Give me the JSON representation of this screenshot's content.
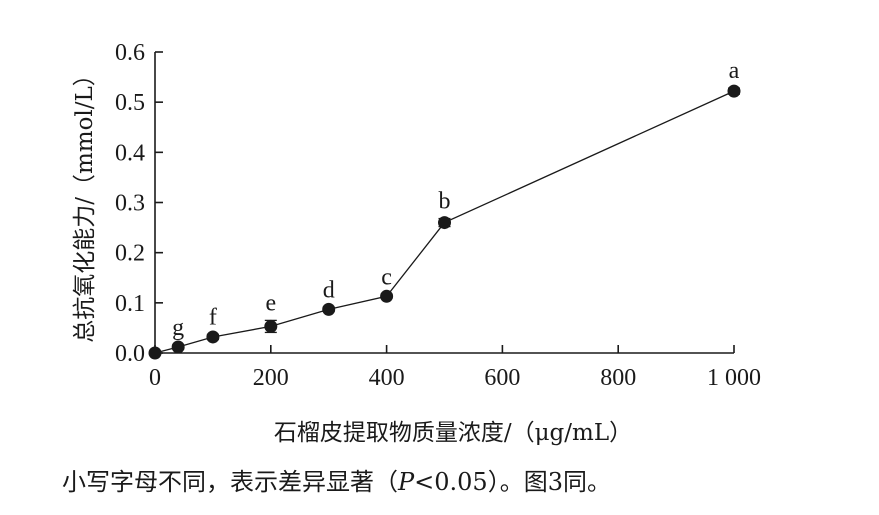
{
  "chart_data": {
    "type": "line",
    "xlabel": "石榴皮提取物质量浓度/（μg/mL）",
    "ylabel": "总抗氧化能力/（mmol/L）",
    "xlim": [
      0,
      1000
    ],
    "ylim": [
      0,
      0.6
    ],
    "x_ticks": [
      0,
      200,
      400,
      600,
      800,
      1000
    ],
    "x_tick_labels": [
      "0",
      "200",
      "400",
      "600",
      "800",
      "1 000"
    ],
    "y_ticks": [
      0,
      0.1,
      0.2,
      0.3,
      0.4,
      0.5,
      0.6
    ],
    "y_tick_labels": [
      "0.0",
      "0.1",
      "0.2",
      "0.3",
      "0.4",
      "0.5",
      "0.6"
    ],
    "grid": false,
    "series": [
      {
        "x": [
          0,
          40,
          100,
          200,
          300,
          400,
          500,
          1000
        ],
        "y": [
          0.0,
          0.012,
          0.032,
          0.053,
          0.087,
          0.113,
          0.26,
          0.522
        ],
        "error": [
          0.0,
          0.004,
          0.005,
          0.012,
          0.004,
          0.004,
          0.008,
          0.006
        ],
        "labels": [
          "",
          "g",
          "f",
          "e",
          "d",
          "c",
          "b",
          "a"
        ]
      }
    ]
  },
  "footnote": "小写字母不同，表示差异显著（P<0.05）。图3同。",
  "footnote_parts": {
    "before": "小写字母不同，表示差异显著（",
    "italic": "P",
    "after": "<0.05）。图3同。"
  },
  "colors": {
    "ink": "#1a1a1a"
  }
}
